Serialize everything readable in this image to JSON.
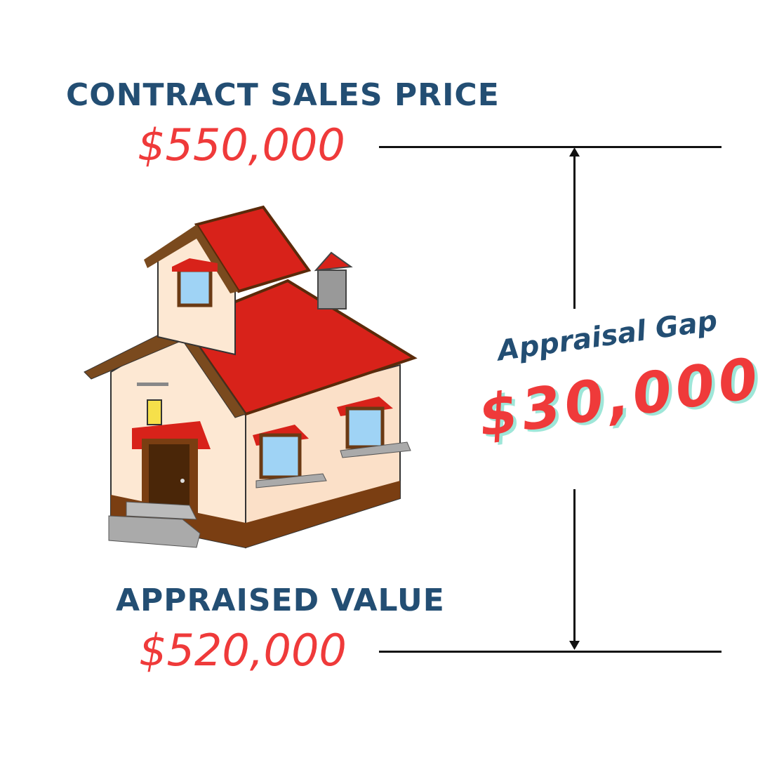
{
  "contract": {
    "label": "CONTRACT SALES PRICE",
    "value": "$550,000"
  },
  "appraised": {
    "label": "APPRAISED VALUE",
    "value": "$520,000"
  },
  "gap": {
    "label": "Appraisal Gap",
    "value": "$30,000"
  },
  "colors": {
    "navy": "#234e73",
    "red": "#ef3a3a",
    "shadow": "#9ee6d8"
  },
  "illustration": "house-icon"
}
